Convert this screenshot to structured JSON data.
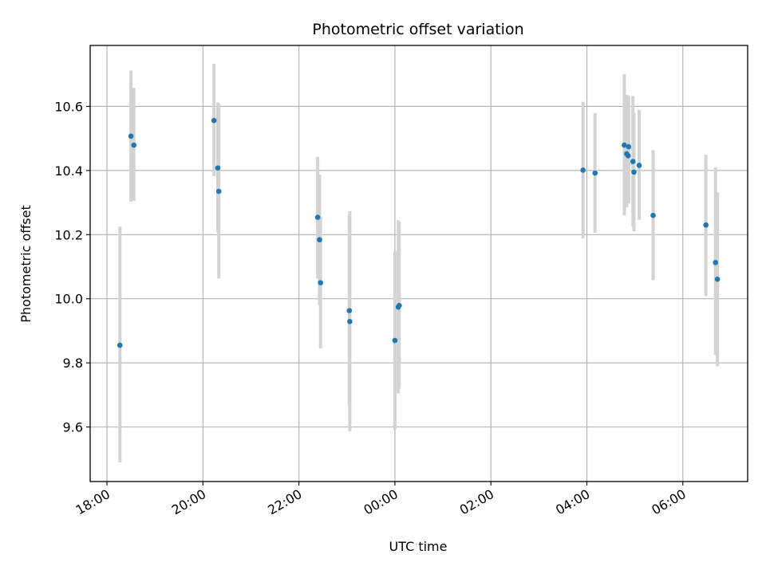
{
  "chart_data": {
    "type": "scatter",
    "title": "Photometric offset variation",
    "xlabel": "UTC time",
    "ylabel": "Photometric offset",
    "x_is_time": true,
    "x_unit": "hours since 18:00 UTC",
    "xlim": [
      -0.35,
      13.35
    ],
    "ylim": [
      9.43,
      10.79
    ],
    "x_ticks": [
      {
        "value": 0,
        "label": "18:00"
      },
      {
        "value": 2,
        "label": "20:00"
      },
      {
        "value": 4,
        "label": "22:00"
      },
      {
        "value": 6,
        "label": "00:00"
      },
      {
        "value": 8,
        "label": "02:00"
      },
      {
        "value": 10,
        "label": "04:00"
      },
      {
        "value": 12,
        "label": "06:00"
      }
    ],
    "y_ticks": [
      {
        "value": 9.6,
        "label": "9.6"
      },
      {
        "value": 9.8,
        "label": "9.8"
      },
      {
        "value": 10.0,
        "label": "10.0"
      },
      {
        "value": 10.2,
        "label": "10.2"
      },
      {
        "value": 10.4,
        "label": "10.4"
      },
      {
        "value": 10.6,
        "label": "10.6"
      }
    ],
    "grid": true,
    "marker_color": "#1f77b4",
    "errorbar_color": "#d3d3d3",
    "points": [
      {
        "x": 0.27,
        "y": 9.855,
        "lo": 9.49,
        "hi": 10.225
      },
      {
        "x": 0.5,
        "y": 10.507,
        "lo": 10.303,
        "hi": 10.712
      },
      {
        "x": 0.56,
        "y": 10.479,
        "lo": 10.305,
        "hi": 10.658
      },
      {
        "x": 2.23,
        "y": 10.556,
        "lo": 10.383,
        "hi": 10.733
      },
      {
        "x": 2.31,
        "y": 10.408,
        "lo": 10.207,
        "hi": 10.612
      },
      {
        "x": 2.33,
        "y": 10.335,
        "lo": 10.063,
        "hi": 10.608
      },
      {
        "x": 4.39,
        "y": 10.254,
        "lo": 10.063,
        "hi": 10.443
      },
      {
        "x": 4.43,
        "y": 10.184,
        "lo": 9.98,
        "hi": 10.387
      },
      {
        "x": 4.45,
        "y": 10.05,
        "lo": 9.845,
        "hi": 10.255
      },
      {
        "x": 5.05,
        "y": 9.963,
        "lo": 9.666,
        "hi": 10.262
      },
      {
        "x": 5.06,
        "y": 9.929,
        "lo": 9.587,
        "hi": 10.273
      },
      {
        "x": 6.0,
        "y": 9.87,
        "lo": 9.592,
        "hi": 10.148
      },
      {
        "x": 6.07,
        "y": 9.974,
        "lo": 9.705,
        "hi": 10.245
      },
      {
        "x": 6.09,
        "y": 9.979,
        "lo": 9.72,
        "hi": 10.24
      },
      {
        "x": 9.92,
        "y": 10.401,
        "lo": 10.188,
        "hi": 10.614
      },
      {
        "x": 10.17,
        "y": 10.392,
        "lo": 10.206,
        "hi": 10.579
      },
      {
        "x": 10.78,
        "y": 10.479,
        "lo": 10.26,
        "hi": 10.7
      },
      {
        "x": 10.83,
        "y": 10.452,
        "lo": 10.285,
        "hi": 10.636
      },
      {
        "x": 10.86,
        "y": 10.446,
        "lo": 10.312,
        "hi": 10.634
      },
      {
        "x": 10.87,
        "y": 10.474,
        "lo": 10.297,
        "hi": 10.63
      },
      {
        "x": 10.96,
        "y": 10.428,
        "lo": 10.226,
        "hi": 10.632
      },
      {
        "x": 10.98,
        "y": 10.395,
        "lo": 10.21,
        "hi": 10.58
      },
      {
        "x": 11.09,
        "y": 10.416,
        "lo": 10.246,
        "hi": 10.589
      },
      {
        "x": 11.38,
        "y": 10.26,
        "lo": 10.058,
        "hi": 10.463
      },
      {
        "x": 12.48,
        "y": 10.23,
        "lo": 10.008,
        "hi": 10.449
      },
      {
        "x": 12.68,
        "y": 10.113,
        "lo": 9.825,
        "hi": 10.41
      },
      {
        "x": 12.72,
        "y": 10.061,
        "lo": 9.79,
        "hi": 10.332
      }
    ]
  }
}
